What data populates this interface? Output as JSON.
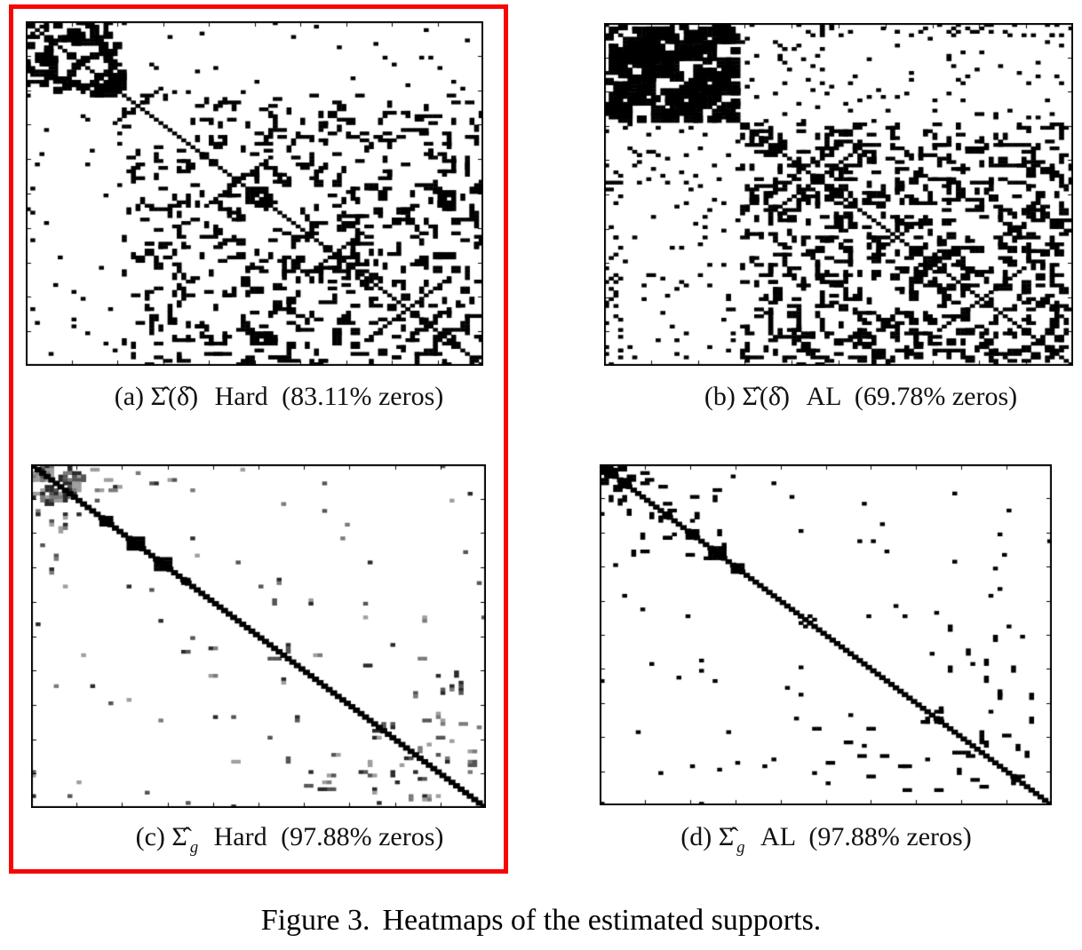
{
  "page": {
    "background": "#ffffff"
  },
  "highlight": {
    "color": "#f60606"
  },
  "figure_caption": {
    "label": "Figure 3.",
    "text": "Heatmaps of the estimated supports."
  },
  "panels": [
    {
      "label_prefix": "(a)",
      "math_main": "Σ̂",
      "math_arg": "(δ̂)",
      "math_sub": "",
      "method": "Hard",
      "zeros": "(83.11% zeros)"
    },
    {
      "label_prefix": "(b)",
      "math_main": "Σ̂",
      "math_arg": "(δ̂)",
      "math_sub": "",
      "method": "AL",
      "zeros": "(69.78% zeros)"
    },
    {
      "label_prefix": "(c)",
      "math_main": "Σ̂",
      "math_arg": "",
      "math_sub": "g",
      "method": "Hard",
      "zeros": "(97.88% zeros)"
    },
    {
      "label_prefix": "(d)",
      "math_main": "Σ̂",
      "math_arg": "",
      "math_sub": "g",
      "method": "AL",
      "zeros": "(97.88% zeros)"
    }
  ],
  "chart_data": [
    {
      "type": "heatmap",
      "panel": "a",
      "title": "(a) Σ̂(δ̂) Hard (83.11% zeros)",
      "zeros_pct": 83.11,
      "n": 100,
      "seed": 41,
      "ink": "#000000",
      "diag": true,
      "diag_width": 1.0,
      "grays": [
        "#2a2a2a",
        "#555555",
        "#7a7a7a",
        "#9e9e9e"
      ],
      "regions": [
        [
          0,
          21,
          0,
          21,
          0.2,
          2,
          2,
          1,
          "b"
        ],
        [
          0,
          21,
          0,
          21,
          0.1,
          3,
          1,
          1,
          "b"
        ],
        [
          14,
          22,
          14,
          22,
          0.6,
          2,
          2,
          1,
          "b"
        ],
        [
          0,
          3,
          0,
          21,
          0.18,
          2,
          1,
          1,
          "b"
        ],
        [
          0,
          21,
          21,
          100,
          0.016,
          1,
          1,
          1,
          "b"
        ],
        [
          21,
          100,
          21,
          100,
          0.085,
          2,
          1,
          1,
          "b"
        ],
        [
          21,
          100,
          21,
          100,
          0.02,
          4,
          1,
          1,
          "b"
        ],
        [
          45,
          100,
          45,
          100,
          0.035,
          2,
          2,
          1,
          "b"
        ],
        [
          21,
          100,
          0,
          4,
          0.012,
          1,
          1,
          0,
          "b"
        ]
      ],
      "diag_blocks": [],
      "antidiag": [
        {
          "c": 24,
          "l": 10
        },
        {
          "c": 46,
          "l": 14
        },
        {
          "c": 67,
          "l": 12
        },
        {
          "c": 83,
          "l": 16
        }
      ]
    },
    {
      "type": "heatmap",
      "panel": "b",
      "title": "(b) Σ̂(δ̂) AL (69.78% zeros)",
      "zeros_pct": 69.78,
      "n": 100,
      "seed": 97,
      "ink": "#000000",
      "diag": true,
      "diag_width": 1.0,
      "grays": [
        "#2a2a2a",
        "#555555",
        "#7a7a7a",
        "#9e9e9e"
      ],
      "regions": [
        [
          0,
          29,
          0,
          29,
          0.5,
          3,
          3,
          1,
          "b"
        ],
        [
          0,
          29,
          0,
          29,
          0.22,
          2,
          2,
          1,
          "b"
        ],
        [
          0,
          4,
          0,
          100,
          0.1,
          1,
          1,
          1,
          "b"
        ],
        [
          0,
          29,
          29,
          100,
          0.045,
          1,
          1,
          1,
          "b"
        ],
        [
          29,
          100,
          29,
          100,
          0.13,
          2,
          1,
          1,
          "b"
        ],
        [
          29,
          100,
          29,
          100,
          0.03,
          4,
          1,
          1,
          "b"
        ],
        [
          55,
          100,
          40,
          100,
          0.05,
          2,
          2,
          1,
          "b"
        ]
      ],
      "diag_blocks": [],
      "antidiag": [
        {
          "c": 45,
          "l": 16
        },
        {
          "c": 62,
          "l": 12
        },
        {
          "c": 80,
          "l": 18
        }
      ]
    },
    {
      "type": "heatmap",
      "panel": "c",
      "title": "(c) Σ̂g Hard (97.88% zeros)",
      "zeros_pct": 97.88,
      "n": 100,
      "seed": 13,
      "ink": "#000000",
      "diag": true,
      "diag_width": 1.45,
      "grays": [
        "#2a2a2a",
        "#555555",
        "#7a7a7a",
        "#9e9e9e"
      ],
      "regions": [
        [
          0,
          12,
          0,
          12,
          0.3,
          2,
          2,
          1,
          "g"
        ],
        [
          0,
          12,
          0,
          12,
          0.15,
          3,
          1,
          1,
          "g"
        ],
        [
          0,
          12,
          12,
          34,
          0.05,
          2,
          1,
          1,
          "g"
        ],
        [
          0,
          100,
          0,
          100,
          0.003,
          1,
          1,
          1,
          "g"
        ],
        [
          50,
          62,
          5,
          100,
          0.012,
          2,
          1,
          1,
          "g"
        ],
        [
          72,
          95,
          40,
          100,
          0.02,
          2,
          1,
          1,
          "g"
        ],
        [
          85,
          95,
          55,
          100,
          0.02,
          2,
          1,
          1,
          "g"
        ],
        [
          0,
          100,
          0,
          1,
          0.04,
          1,
          1,
          0,
          "g"
        ]
      ],
      "diag_blocks": [
        {
          "at": 15,
          "s": 3
        },
        {
          "at": 21,
          "s": 4
        },
        {
          "at": 27,
          "s": 4
        },
        {
          "at": 33,
          "s": 2
        }
      ],
      "antidiag": []
    },
    {
      "type": "heatmap",
      "panel": "d",
      "title": "(d) Σ̂g AL (97.88% zeros)",
      "zeros_pct": 97.88,
      "n": 100,
      "seed": 29,
      "ink": "#000000",
      "diag": true,
      "diag_width": 1.35,
      "grays": [
        "#2a2a2a",
        "#555555",
        "#7a7a7a",
        "#9e9e9e"
      ],
      "regions": [
        [
          0,
          8,
          0,
          8,
          0.5,
          2,
          2,
          1,
          "b"
        ],
        [
          0,
          8,
          8,
          30,
          0.06,
          2,
          1,
          1,
          "b"
        ],
        [
          8,
          30,
          8,
          30,
          0.035,
          2,
          1,
          1,
          "b"
        ],
        [
          0,
          100,
          0,
          100,
          0.003,
          1,
          1,
          1,
          "b"
        ],
        [
          72,
          95,
          40,
          100,
          0.02,
          2,
          1,
          1,
          "b"
        ],
        [
          85,
          97,
          55,
          100,
          0.025,
          2,
          1,
          1,
          "b"
        ],
        [
          0,
          100,
          0,
          1,
          0.03,
          1,
          1,
          0,
          "b"
        ]
      ],
      "diag_blocks": [
        {
          "at": 14,
          "s": 2
        },
        {
          "at": 19,
          "s": 3
        },
        {
          "at": 24,
          "s": 4
        },
        {
          "at": 29,
          "s": 3
        }
      ],
      "antidiag": []
    }
  ]
}
